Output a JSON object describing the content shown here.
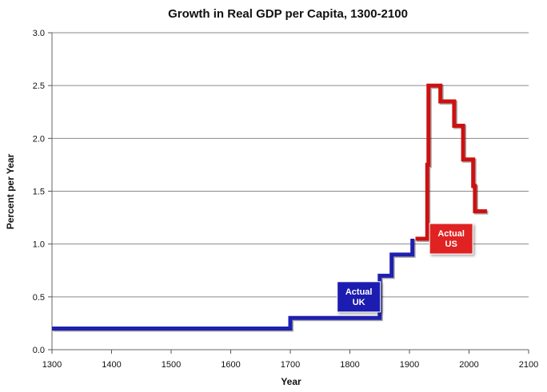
{
  "chart_data": {
    "type": "line",
    "title": "Growth in Real GDP per Capita, 1300-2100",
    "xlabel": "Year",
    "ylabel": "Percent per Year",
    "xlim": [
      1300,
      2100
    ],
    "ylim": [
      0,
      3.0
    ],
    "x_ticks": [
      "1300",
      "1400",
      "1500",
      "1600",
      "1700",
      "1800",
      "1900",
      "2000",
      "2100"
    ],
    "y_ticks": [
      "0.0",
      "0.5",
      "1.0",
      "1.5",
      "2.0",
      "2.5",
      "3.0"
    ],
    "grid": true,
    "series": [
      {
        "name": "Actual UK",
        "color": "#1f1fb0",
        "step": true,
        "points": [
          [
            1300,
            0.2
          ],
          [
            1700,
            0.2
          ],
          [
            1700,
            0.3
          ],
          [
            1850,
            0.3
          ],
          [
            1850,
            0.7
          ],
          [
            1870,
            0.7
          ],
          [
            1870,
            0.9
          ],
          [
            1905,
            0.9
          ],
          [
            1905,
            1.05
          ]
        ]
      },
      {
        "name": "Actual US",
        "color": "#cc1111",
        "step": true,
        "points": [
          [
            1910,
            1.05
          ],
          [
            1930,
            1.05
          ],
          [
            1930,
            1.75
          ],
          [
            1932,
            1.75
          ],
          [
            1932,
            2.5
          ],
          [
            1952,
            2.5
          ],
          [
            1952,
            2.35
          ],
          [
            1975,
            2.35
          ],
          [
            1975,
            2.12
          ],
          [
            1990,
            2.12
          ],
          [
            1990,
            1.8
          ],
          [
            2007,
            1.8
          ],
          [
            2007,
            1.55
          ],
          [
            2010,
            1.55
          ],
          [
            2010,
            1.31
          ],
          [
            2030,
            1.31
          ]
        ]
      }
    ],
    "annotations": [
      {
        "text_lines": [
          "Actual",
          "UK"
        ],
        "color": "#1f1fb0",
        "near_x": 1815,
        "near_y": 0.5
      },
      {
        "text_lines": [
          "Actual",
          "US"
        ],
        "color": "#e02020",
        "near_x": 1970,
        "near_y": 1.05
      }
    ]
  }
}
